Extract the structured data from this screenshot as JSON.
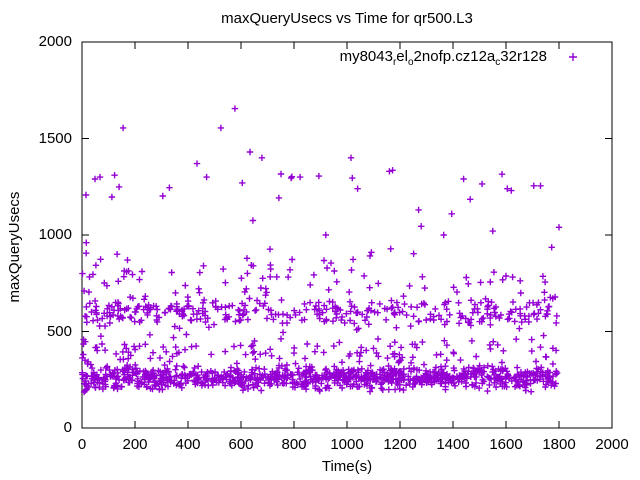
{
  "title": "maxQueryUsecs vs Time for qr500.L3",
  "axes": {
    "x": {
      "label": "Time(s)",
      "min": 0,
      "max": 2000,
      "ticks": [
        0,
        200,
        400,
        600,
        800,
        1000,
        1200,
        1400,
        1600,
        1800,
        2000
      ]
    },
    "y": {
      "label": "maxQueryUsecs",
      "min": 0,
      "max": 2000,
      "ticks": [
        0,
        500,
        1000,
        1500,
        2000
      ]
    }
  },
  "legend": {
    "position": "top-right",
    "entries": [
      {
        "label_raw": "my8043_rel_o2nofp.cz12a_c32r128",
        "segments": [
          {
            "text": "my8043"
          },
          {
            "text": "r",
            "sub": true
          },
          {
            "text": "el"
          },
          {
            "text": "o",
            "sub": true
          },
          {
            "text": "2nofp.cz12a"
          },
          {
            "text": "c",
            "sub": true
          },
          {
            "text": "32r128"
          }
        ],
        "marker": "plus",
        "color": "#9400D3"
      }
    ]
  },
  "colors": {
    "series": "#9400D3",
    "axis": "#000000",
    "background": "#FFFFFF",
    "text": "#000000"
  },
  "chart_data": {
    "type": "scatter",
    "title": "maxQueryUsecs vs Time for qr500.L3",
    "xlabel": "Time(s)",
    "ylabel": "maxQueryUsecs",
    "xlim": [
      0,
      2000
    ],
    "ylim": [
      0,
      2000
    ],
    "grid": false,
    "legend_position": "top-right",
    "marker": "plus",
    "series": [
      {
        "name": "my8043_rel_o2nofp.cz12a_c32r128",
        "color": "#9400D3",
        "x_data_range": [
          0,
          1800
        ],
        "seed": 7,
        "clusters_estimated": [
          {
            "count": 950,
            "x": [
              0,
              1800
            ],
            "dist": "normal",
            "y_mean": 262,
            "y_sd": 30,
            "y_clip": [
              186,
              372
            ]
          },
          {
            "count": 120,
            "x": [
              0,
              1800
            ],
            "dist": "normal",
            "y_mean": 398,
            "y_sd": 45,
            "y_clip": [
              342,
              500
            ]
          },
          {
            "count": 340,
            "x": [
              0,
              1800
            ],
            "dist": "normal",
            "y_mean": 600,
            "y_sd": 40,
            "y_clip": [
              505,
              700
            ]
          },
          {
            "count": 85,
            "x": [
              0,
              1800
            ],
            "dist": "normal",
            "y_mean": 760,
            "y_sd": 85,
            "y_clip": [
              695,
              1005
            ]
          }
        ],
        "outliers": [
          [
            2,
            800
          ],
          [
            15,
            1207
          ],
          [
            49,
            1290
          ],
          [
            68,
            1300
          ],
          [
            113,
            1197
          ],
          [
            123,
            1310
          ],
          [
            140,
            1249
          ],
          [
            155,
            1555
          ],
          [
            305,
            1202
          ],
          [
            330,
            1245
          ],
          [
            434,
            1370
          ],
          [
            470,
            1300
          ],
          [
            524,
            1555
          ],
          [
            577,
            1655
          ],
          [
            605,
            1270
          ],
          [
            634,
            1430
          ],
          [
            645,
            1075
          ],
          [
            679,
            1400
          ],
          [
            743,
            1192
          ],
          [
            751,
            1316
          ],
          [
            789,
            1295
          ],
          [
            792,
            1302
          ],
          [
            823,
            1300
          ],
          [
            894,
            1305
          ],
          [
            920,
            1000
          ],
          [
            1015,
            1400
          ],
          [
            1020,
            1295
          ],
          [
            1040,
            1240
          ],
          [
            1160,
            1330
          ],
          [
            1172,
            1335
          ],
          [
            1270,
            1130
          ],
          [
            1280,
            1045
          ],
          [
            1365,
            1000
          ],
          [
            1395,
            1110
          ],
          [
            1440,
            1290
          ],
          [
            1465,
            1185
          ],
          [
            1510,
            1265
          ],
          [
            1550,
            1020
          ],
          [
            1585,
            1315
          ],
          [
            1605,
            1240
          ],
          [
            1620,
            1230
          ],
          [
            1705,
            1255
          ],
          [
            1730,
            1255
          ],
          [
            1800,
            1040
          ]
        ]
      }
    ]
  }
}
